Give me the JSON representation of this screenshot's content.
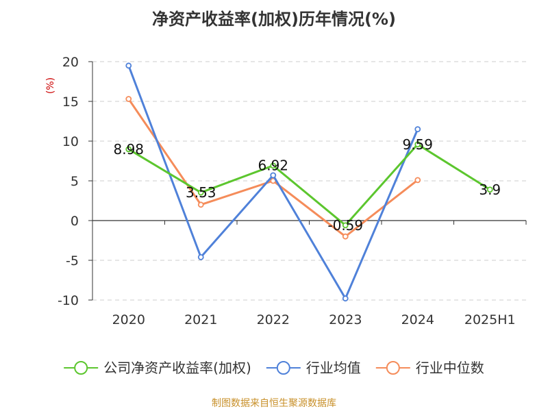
{
  "chart_data": {
    "type": "line",
    "title": "净资产收益率(加权)历年情况(%)",
    "ylabel": "(%)",
    "categories": [
      "2020",
      "2021",
      "2022",
      "2023",
      "2024",
      "2025H1"
    ],
    "ylim": [
      -10,
      20
    ],
    "yticks": [
      -10,
      -5,
      0,
      5,
      10,
      15,
      20
    ],
    "grid": true,
    "legend_position": "bottom",
    "series": [
      {
        "name": "公司净资产收益率(加权)",
        "color": "#5cc62e",
        "labeled": true,
        "values": [
          8.98,
          3.53,
          6.92,
          -0.59,
          9.59,
          3.9
        ]
      },
      {
        "name": "行业均值",
        "color": "#4f81d9",
        "labeled": false,
        "values": [
          19.5,
          -4.6,
          5.7,
          -9.8,
          11.5,
          null
        ]
      },
      {
        "name": "行业中位数",
        "color": "#f58c5a",
        "labeled": false,
        "values": [
          15.3,
          2.0,
          5.0,
          -2.0,
          5.1,
          null
        ]
      }
    ],
    "data_labels": [
      "8.98",
      "3.53",
      "6.92",
      "-0.59",
      "9.59",
      "3.9"
    ]
  },
  "footer": {
    "source": "制图数据来自恒生聚源数据库"
  }
}
